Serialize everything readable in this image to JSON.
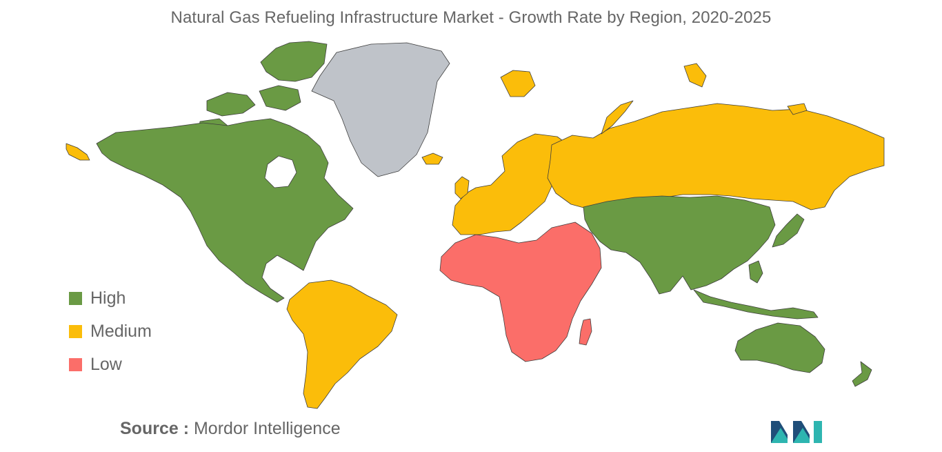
{
  "title": "Natural Gas Refueling Infrastructure Market - Growth Rate by Region, 2020-2025",
  "legend": [
    {
      "label": "High",
      "color": "#6a9a44"
    },
    {
      "label": "Medium",
      "color": "#fbbd0a"
    },
    {
      "label": "Low",
      "color": "#fb6e69"
    }
  ],
  "no_data_color": "#bfc3c9",
  "regions": {
    "north_america": "High",
    "south_america": "Medium",
    "europe": "Medium",
    "russia": "Medium",
    "middle_east_africa": "Low",
    "asia_pacific": "High",
    "australia": "High",
    "greenland": "No data"
  },
  "source": {
    "prefix": "Source :",
    "text": "Mordor Intelligence"
  },
  "logo_icon": "mordor-intelligence-logo-icon"
}
